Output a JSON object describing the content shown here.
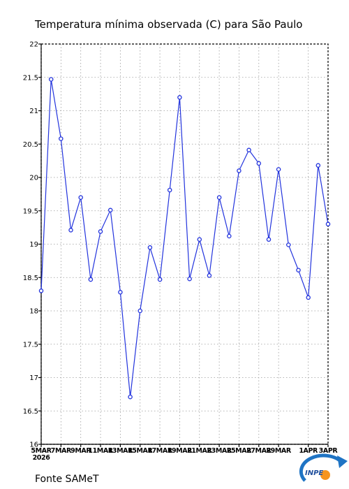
{
  "chart_data": {
    "type": "line",
    "title": "Temperatura mínima observada (C) para São Paulo",
    "source": "Fonte SAMeT",
    "logo_text": "INPE",
    "ylim": [
      16,
      22
    ],
    "yticks": [
      16,
      16.5,
      17,
      17.5,
      18,
      18.5,
      19,
      19.5,
      20,
      20.5,
      21,
      21.5,
      22
    ],
    "xlim": [
      "5MAR2026",
      "3APR2026"
    ],
    "xticks": [
      {
        "label": "5MAR",
        "sublabel": "2026",
        "day": 0
      },
      {
        "label": "7MAR",
        "day": 2
      },
      {
        "label": "9MAR",
        "day": 4
      },
      {
        "label": "11MAR",
        "day": 6
      },
      {
        "label": "13MAR",
        "day": 8
      },
      {
        "label": "15MAR",
        "day": 10
      },
      {
        "label": "17MAR",
        "day": 12
      },
      {
        "label": "19MAR",
        "day": 14
      },
      {
        "label": "21MAR",
        "day": 16
      },
      {
        "label": "23MAR",
        "day": 18
      },
      {
        "label": "25MAR",
        "day": 20
      },
      {
        "label": "27MAR",
        "day": 22
      },
      {
        "label": "29MAR",
        "day": 24
      },
      {
        "label": "1APR",
        "day": 27
      },
      {
        "label": "3APR",
        "day": 29
      }
    ],
    "grid": true,
    "series": [
      {
        "color": "#2233dd",
        "x": [
          "5MAR",
          "6MAR",
          "7MAR",
          "8MAR",
          "9MAR",
          "10MAR",
          "11MAR",
          "12MAR",
          "13MAR",
          "14MAR",
          "15MAR",
          "16MAR",
          "17MAR",
          "18MAR",
          "19MAR",
          "20MAR",
          "21MAR",
          "22MAR",
          "23MAR",
          "24MAR",
          "25MAR",
          "26MAR",
          "27MAR",
          "28MAR",
          "29MAR",
          "30MAR",
          "31MAR",
          "1APR",
          "2APR",
          "3APR"
        ],
        "values": [
          18.3,
          21.47,
          20.58,
          19.21,
          19.7,
          18.47,
          19.19,
          19.51,
          18.28,
          16.71,
          18.0,
          18.95,
          18.47,
          19.81,
          21.2,
          18.48,
          19.07,
          18.53,
          19.7,
          19.12,
          20.1,
          20.41,
          20.21,
          19.07,
          20.12,
          18.99,
          18.61,
          18.2,
          20.18,
          19.3
        ]
      }
    ]
  }
}
